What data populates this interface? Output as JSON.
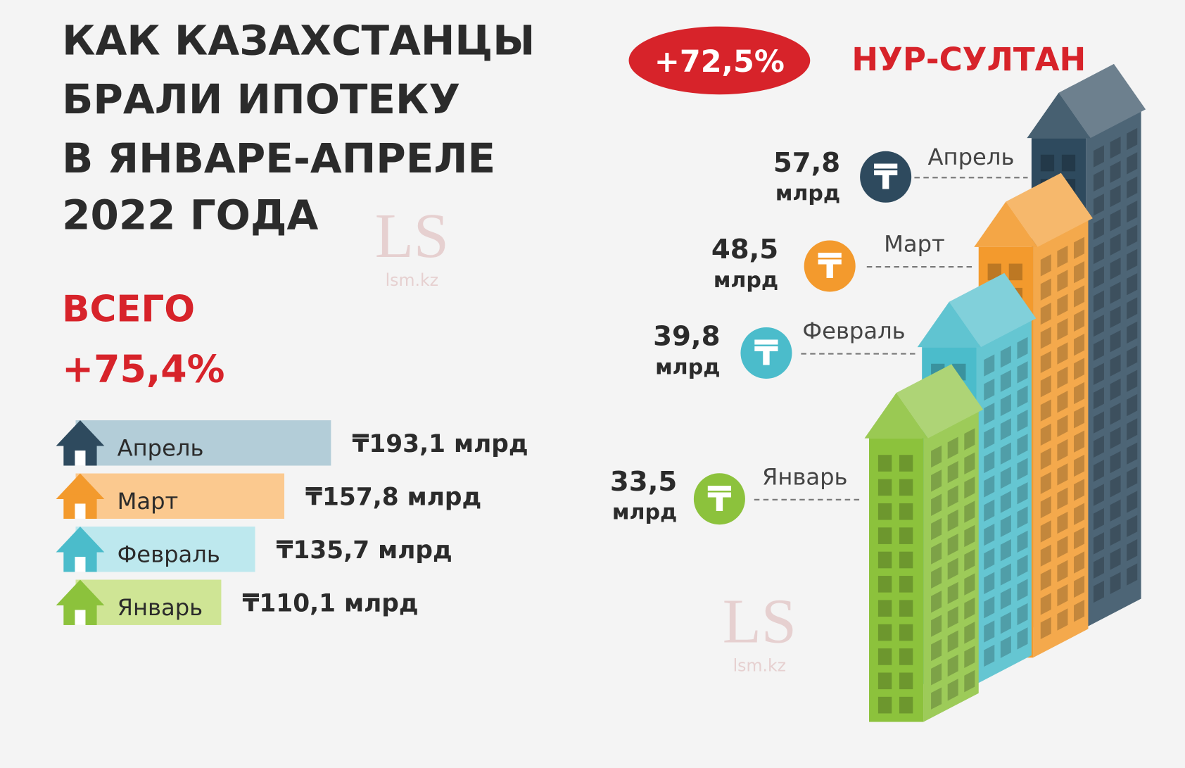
{
  "title": [
    "КАК КАЗАХСТАНЦЫ",
    "БРАЛИ ИПОТЕКУ",
    "В ЯНВАРЕ-АПРЕЛЕ",
    "2022 ГОДА"
  ],
  "watermark": {
    "logo": "LS",
    "site": "lsm.kz"
  },
  "chart_data": [
    {
      "type": "hbar",
      "subtitle": "ВСЕГО",
      "annotation": "+75,4%",
      "categories": [
        "Апрель",
        "Март",
        "Февраль",
        "Январь"
      ],
      "values": [
        193.1,
        157.8,
        135.7,
        110.1
      ],
      "value_labels": [
        "₸193,1 млрд",
        "₸157,8 млрд",
        "₸135,7 млрд",
        "₸110,1 млрд"
      ],
      "colors": [
        "#b3cdd8",
        "#fbc98f",
        "#bde8ee",
        "#cfe595"
      ],
      "icon_colors": [
        "#2e4a5e",
        "#f39a2d",
        "#4bbccb",
        "#8cc23c"
      ]
    },
    {
      "type": "building",
      "title": "НУР-СУЛТАН",
      "annotation": "+72,5%",
      "categories": [
        "Апрель",
        "Март",
        "Февраль",
        "Январь"
      ],
      "values": [
        57.8,
        48.5,
        39.8,
        33.5
      ],
      "value_labels": [
        "57,8",
        "48,5",
        "39,8",
        "33,5"
      ],
      "unit": "млрд",
      "currency": "₸",
      "colors": [
        "#2e4a5e",
        "#f39a2d",
        "#4bbccb",
        "#8cc23c"
      ]
    }
  ]
}
